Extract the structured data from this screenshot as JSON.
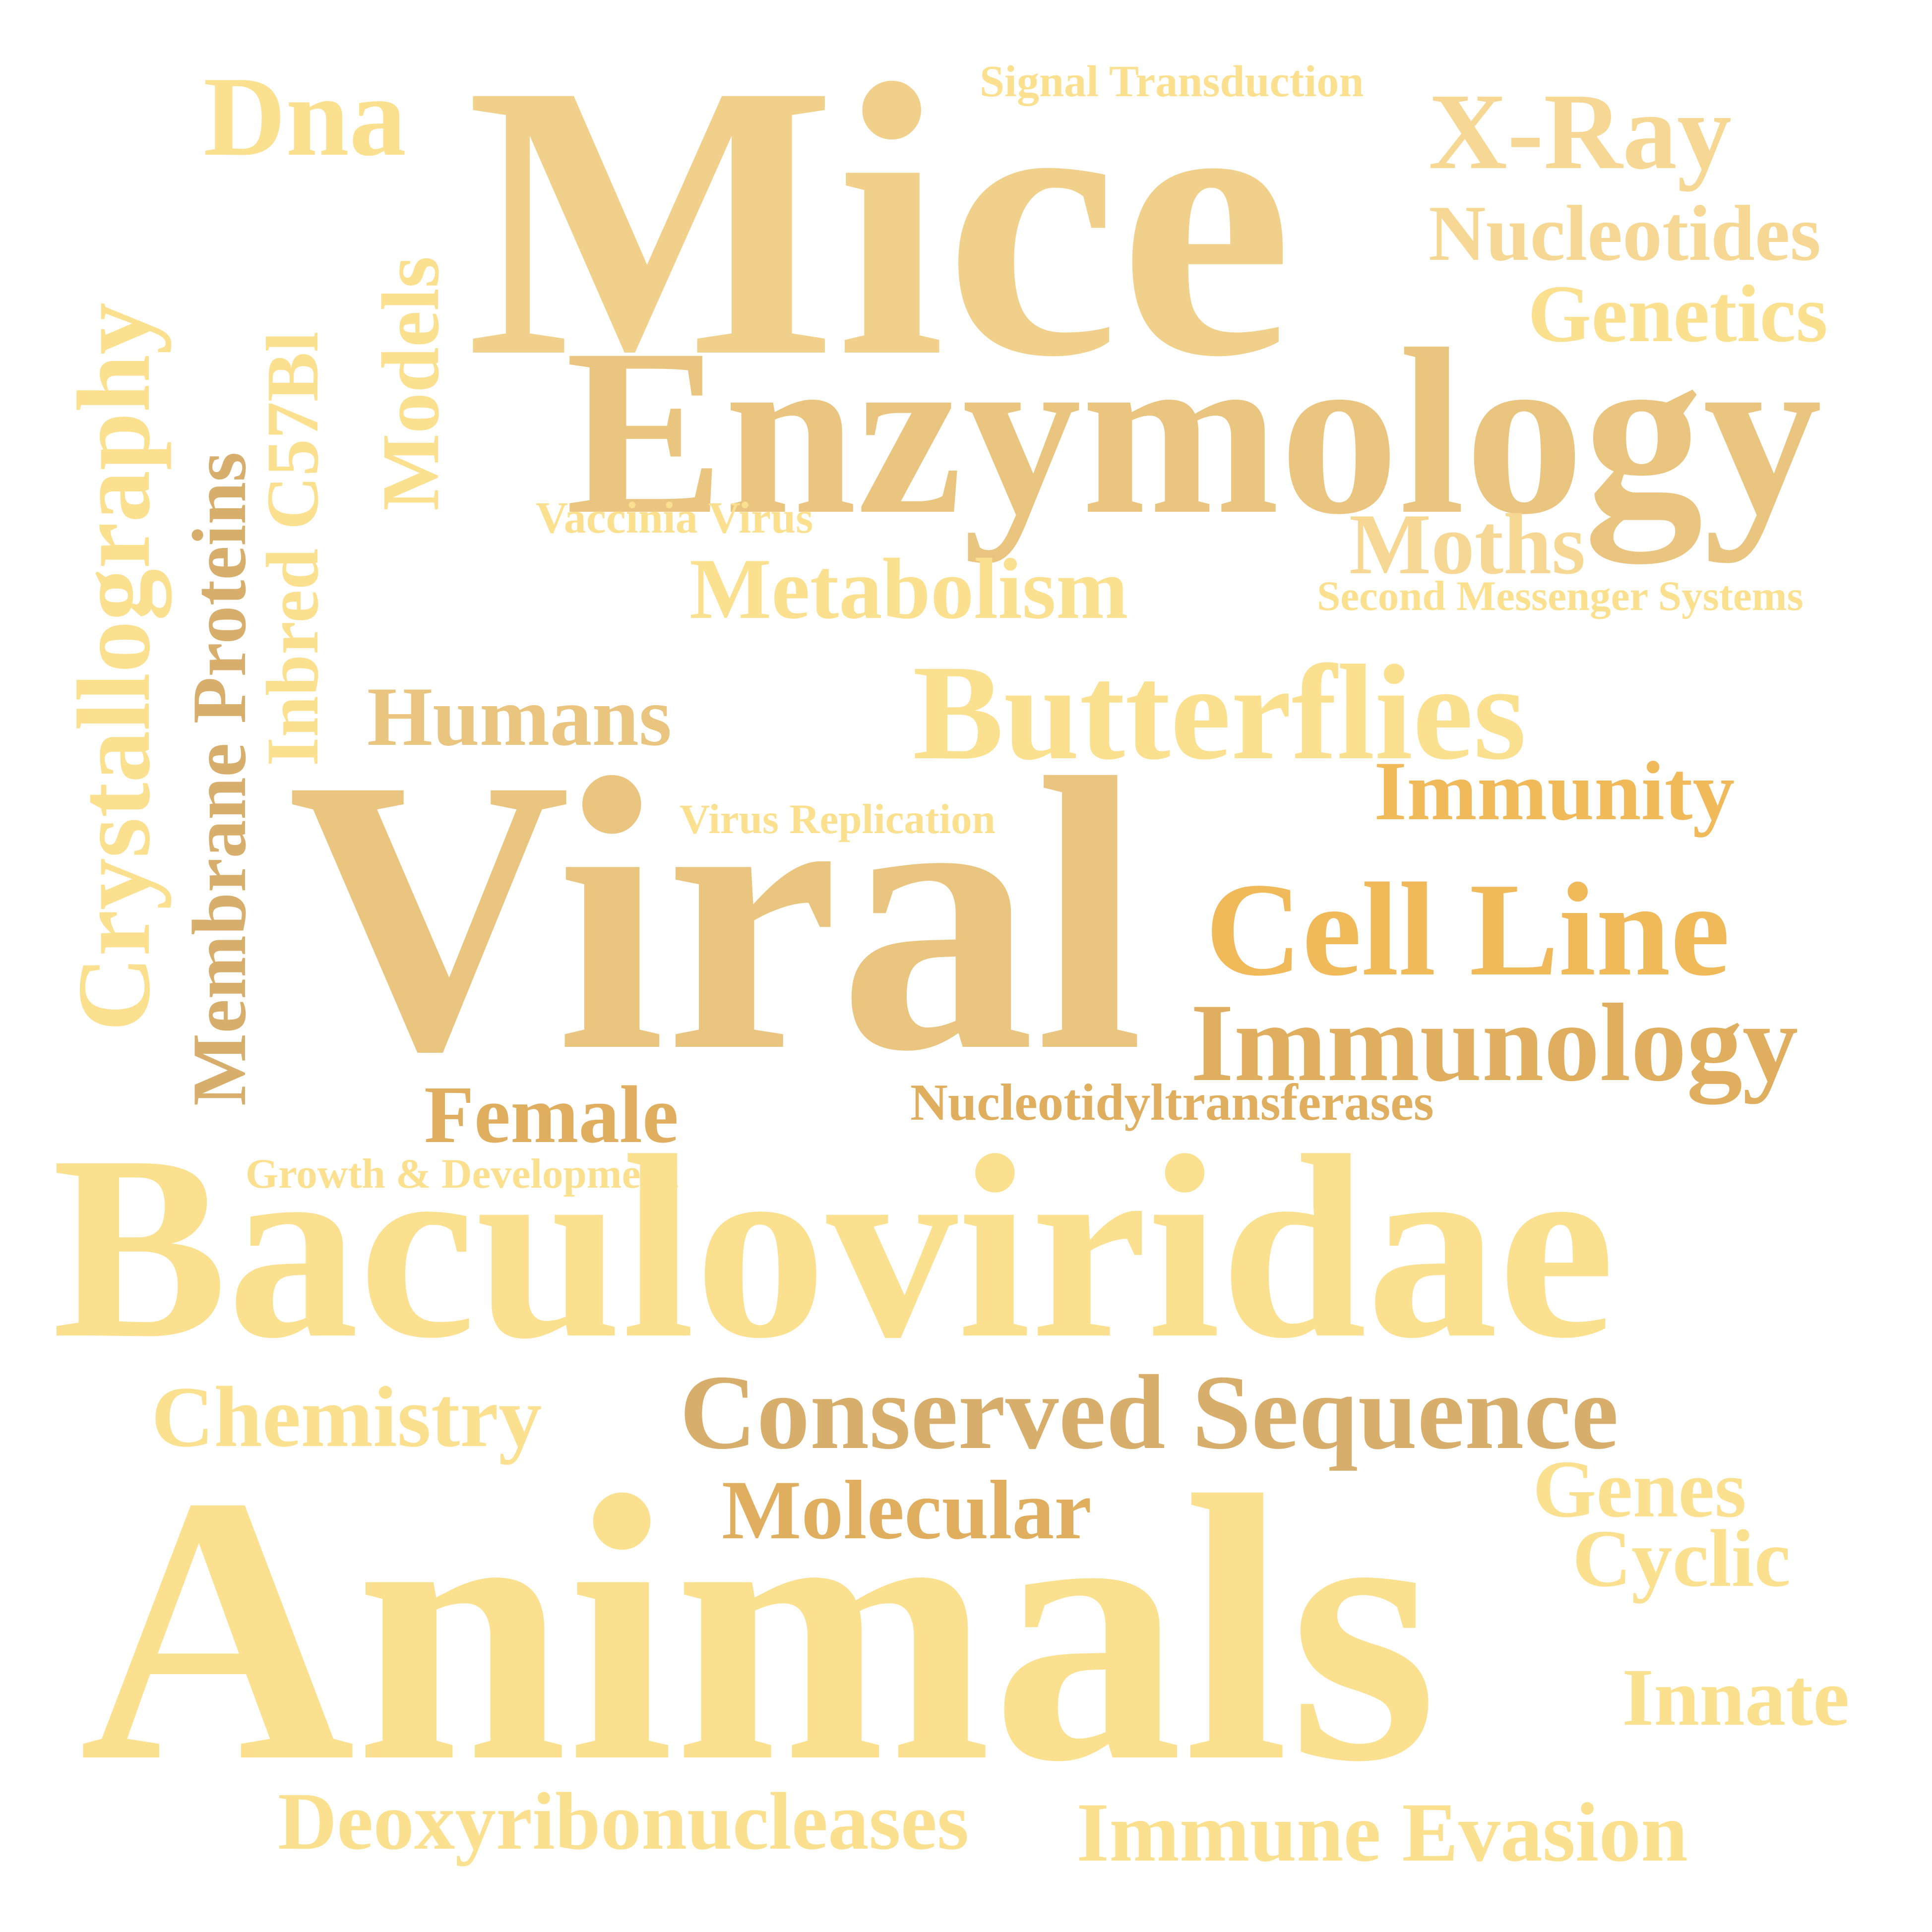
{
  "palette": {
    "pale": "#fbe08f",
    "light": "#f6d894",
    "mid": "#f0d08a",
    "warm": "#eac580",
    "tan": "#dfae5f",
    "orange": "#f0b95a",
    "brown": "#d7ae6c"
  },
  "words": {
    "mice": "Mice",
    "enzymology": "Enzymology",
    "viral": "Viral",
    "baculoviridae": "Baculoviridae",
    "animals": "Animals",
    "dna": "Dna",
    "signal_transduction": "Signal Transduction",
    "x_ray": "X-Ray",
    "nucleotides": "Nucleotides",
    "genetics": "Genetics",
    "crystallography": "Crystallography",
    "membrane_proteins": "Membrane Proteins",
    "inbred_c57bl": "Inbred C57Bl",
    "models": "Models",
    "vaccinia_virus": "Vaccinia Virus",
    "moths": "Moths",
    "metabolism": "Metabolism",
    "second_messenger_systems": "Second Messenger Systems",
    "humans": "Humans",
    "butterflies": "Butterflies",
    "immunity": "Immunity",
    "virus_replication": "Virus Replication",
    "cell_line": "Cell Line",
    "immunology": "Immunology",
    "female": "Female",
    "nucleotidyltransferases": "Nucleotidyltransferases",
    "growth_development": "Growth & Development",
    "chemistry": "Chemistry",
    "conserved_sequence": "Conserved Sequence",
    "genes": "Genes",
    "molecular": "Molecular",
    "cyclic": "Cyclic",
    "innate": "Innate",
    "deoxyribonucleases": "Deoxyribonucleases",
    "immune_evasion": "Immune Evasion"
  }
}
